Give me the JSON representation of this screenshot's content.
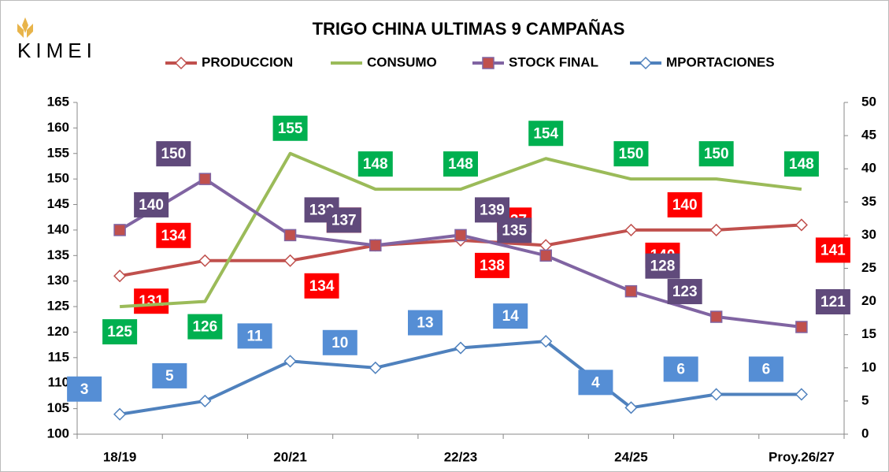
{
  "logo": "KIMEI",
  "chart_data": {
    "type": "line",
    "title": "TRIGO CHINA ULTIMAS 9 CAMPAÑAS",
    "categories": [
      "18/19",
      null,
      "20/21",
      null,
      "22/23",
      null,
      "24/25",
      null,
      "Proy.26/27"
    ],
    "series": [
      {
        "name": "PRODUCCION",
        "color": "#c0504d",
        "label_color": "#ff0000",
        "marker": "diamond",
        "values": [
          131,
          134,
          134,
          137,
          138,
          137,
          140,
          140,
          141
        ]
      },
      {
        "name": "CONSUMO",
        "color": "#9bbb59",
        "label_color": "#00b050",
        "marker": "none",
        "values": [
          125,
          126,
          155,
          148,
          148,
          154,
          150,
          150,
          148
        ]
      },
      {
        "name": "STOCK FINAL",
        "color": "#8064a2",
        "label_color": "#604a7b",
        "marker": "square",
        "values": [
          140,
          150,
          139,
          137,
          139,
          135,
          128,
          123,
          121
        ]
      },
      {
        "name": "MPORTACIONES",
        "color": "#4f81bd",
        "label_color": "#558ed5",
        "marker": "diamond",
        "axis": "y2",
        "values": [
          3,
          5,
          11,
          10,
          13,
          14,
          4,
          6,
          6
        ]
      }
    ],
    "ylim": [
      100,
      165
    ],
    "yticks": [
      100,
      105,
      110,
      115,
      120,
      125,
      130,
      135,
      140,
      145,
      150,
      155,
      160,
      165
    ],
    "y2lim": [
      0,
      50
    ],
    "y2ticks": [
      0,
      5,
      10,
      15,
      20,
      25,
      30,
      35,
      40,
      45,
      50
    ],
    "grid": false,
    "legend": "top"
  }
}
